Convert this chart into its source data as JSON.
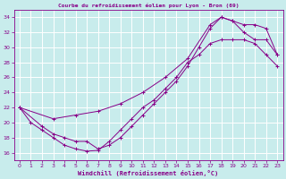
{
  "title": "Courbe du refroidissement éolien pour Lyon - Bron (69)",
  "xlabel": "Windchill (Refroidissement éolien,°C)",
  "bg_color": "#c8ecec",
  "line_color": "#880088",
  "grid_color": "#ffffff",
  "xlim": [
    -0.5,
    23.5
  ],
  "ylim": [
    15.0,
    35.0
  ],
  "xticks": [
    0,
    1,
    2,
    3,
    4,
    5,
    6,
    7,
    8,
    9,
    10,
    11,
    12,
    13,
    14,
    15,
    16,
    17,
    18,
    19,
    20,
    21,
    22,
    23
  ],
  "yticks": [
    16,
    18,
    20,
    22,
    24,
    26,
    28,
    30,
    32,
    34
  ],
  "series1_x": [
    0,
    1,
    2,
    3,
    4,
    5,
    6,
    7,
    8,
    9,
    10,
    11,
    12,
    13,
    14,
    15,
    16,
    17,
    18,
    19,
    20,
    21,
    22,
    23
  ],
  "series1_y": [
    22,
    20,
    19,
    18,
    17,
    16.5,
    16.2,
    16.3,
    17.5,
    19,
    20.5,
    22,
    23,
    24.5,
    26,
    28,
    29,
    30.5,
    31,
    31,
    31,
    30.5,
    29,
    27.5
  ],
  "series2_x": [
    0,
    2,
    3,
    4,
    5,
    6,
    7,
    8,
    9,
    10,
    11,
    12,
    13,
    14,
    15,
    16,
    17,
    18,
    19,
    20,
    21,
    22,
    23
  ],
  "series2_y": [
    22,
    19.5,
    18.5,
    18,
    17.5,
    17.5,
    16.5,
    17,
    18,
    19.5,
    21,
    22.5,
    24,
    25.5,
    27.5,
    30,
    32.5,
    34,
    33.5,
    33,
    33,
    32.5,
    29
  ],
  "series3_x": [
    0,
    3,
    5,
    7,
    9,
    11,
    13,
    15,
    17,
    18,
    19,
    20,
    21,
    22,
    23
  ],
  "series3_y": [
    22,
    20.5,
    21,
    21.5,
    22.5,
    24,
    26,
    28.5,
    33,
    34,
    33.5,
    32,
    31,
    31,
    29
  ]
}
